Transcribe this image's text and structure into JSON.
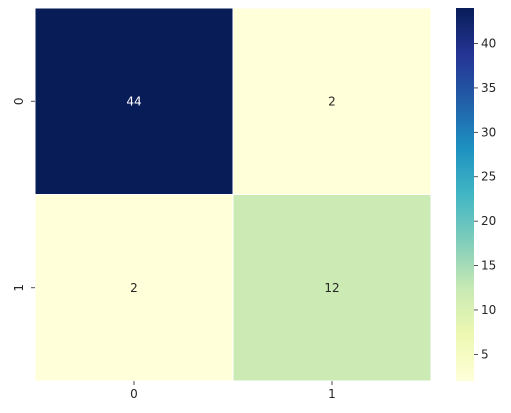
{
  "chart_data": {
    "type": "heatmap",
    "title": "",
    "xlabel": "",
    "ylabel": "",
    "x_categories": [
      "0",
      "1"
    ],
    "y_categories": [
      "0",
      "1"
    ],
    "values": [
      [
        44,
        2
      ],
      [
        2,
        12
      ]
    ],
    "annotations": [
      [
        "44",
        "2"
      ],
      [
        "2",
        "12"
      ]
    ],
    "colormap": "YlGnBu",
    "color_range": [
      2,
      44
    ],
    "colorbar_ticks": [
      "5",
      "10",
      "15",
      "20",
      "25",
      "30",
      "35",
      "40"
    ],
    "colorbar_tick_values": [
      5,
      10,
      15,
      20,
      25,
      30,
      35,
      40
    ],
    "cell_borders": "white",
    "grid": false,
    "legend": "colorbar-right"
  }
}
